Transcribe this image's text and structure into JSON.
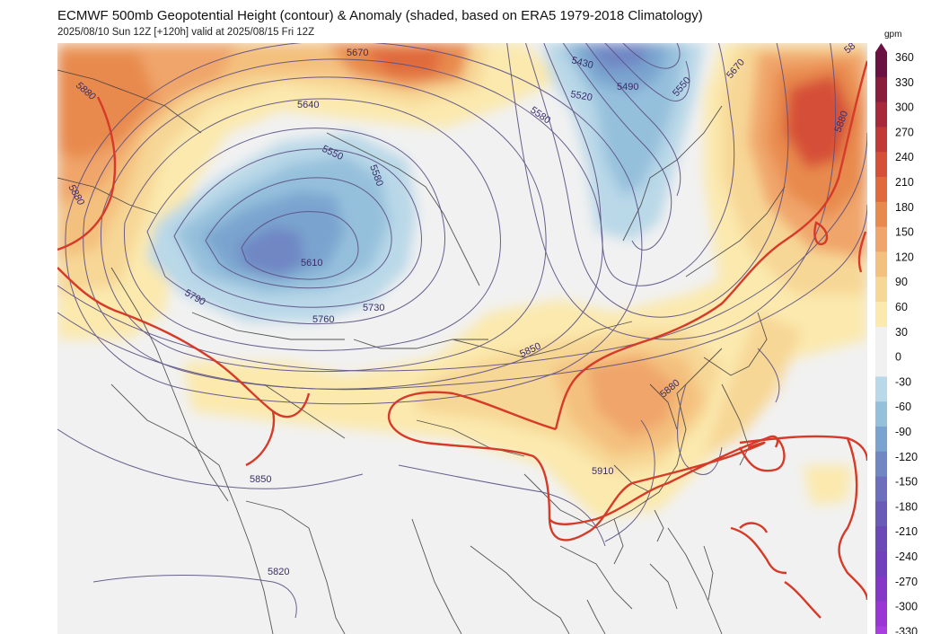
{
  "title": "ECMWF 500mb Geopotential Height (contour) & Anomaly (shaded, based on ERA5 1979-2018 Climatology)",
  "subtitle": "2025/08/10 Sun 12Z [+120h] valid at 2025/08/15 Fri 12Z",
  "colorbar": {
    "unit": "gpm",
    "ticks": [
      "360",
      "330",
      "300",
      "270",
      "240",
      "210",
      "180",
      "150",
      "120",
      "90",
      "60",
      "30",
      "0",
      "-30",
      "-60",
      "-90",
      "-120",
      "-150",
      "-180",
      "-210",
      "-240",
      "-270",
      "-300",
      "-330"
    ],
    "colors": [
      "#6b1242",
      "#8a1c3c",
      "#a82a3a",
      "#c23a36",
      "#d55037",
      "#e06a3c",
      "#e88a4e",
      "#f0a56a",
      "#f4c07e",
      "#f7d796",
      "#fbe9ae",
      "#f1f1f1",
      "#f1f1f1",
      "#b9d8e8",
      "#95c0dc",
      "#7aa4cf",
      "#7087c4",
      "#6d6fbd",
      "#6a5bb6",
      "#6b49b6",
      "#7240bd",
      "#8538c8",
      "#9a36d4",
      "#a93fdf"
    ]
  },
  "contour_labels": {
    "l5880_nw": "5880",
    "l5880_w": "5880",
    "l5670": "5670",
    "l5640": "5640",
    "l5550": "5550",
    "l5580_c": "5580",
    "l5610": "5610",
    "l5790": "5790",
    "l5760": "5760",
    "l5730": "5730",
    "l5430": "5430",
    "l5490": "5490",
    "l5520": "5520",
    "l5580_ne": "5580",
    "l5550_ne": "5550",
    "l5670_ne": "5670",
    "l5880_e": "5880",
    "l5850_c": "5850",
    "l5880_se": "5880",
    "l5910": "5910",
    "l5850_sw": "5850",
    "l5820": "5820",
    "l58_corner": "58"
  }
}
